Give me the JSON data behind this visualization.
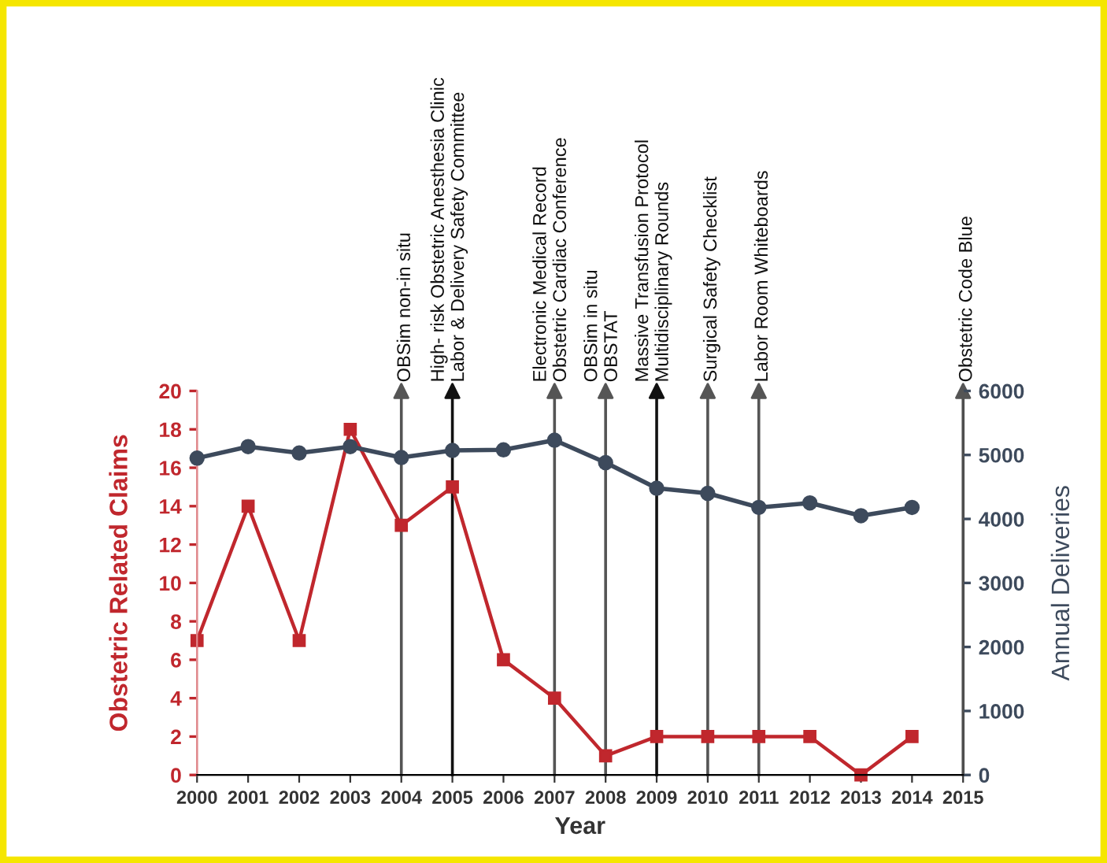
{
  "chart_data": {
    "type": "line",
    "xlabel": "Year",
    "ylabel": "Obstetric Related Claims",
    "y2label": "Annual Deliveries",
    "x": [
      2000,
      2001,
      2002,
      2003,
      2004,
      2005,
      2006,
      2007,
      2008,
      2009,
      2010,
      2011,
      2012,
      2013,
      2014
    ],
    "series": [
      {
        "color": "#c0272d",
        "marker": "square",
        "values": [
          7,
          14,
          7,
          18,
          13,
          15,
          6,
          4,
          1,
          2,
          2,
          2,
          2,
          0,
          2
        ]
      },
      {
        "color": "#3d4a5c",
        "marker": "circle",
        "axis": "y2",
        "values": [
          4950,
          5130,
          5030,
          5130,
          4960,
          5070,
          5080,
          5230,
          4880,
          4480,
          4400,
          4180,
          4250,
          4050,
          4180
        ]
      }
    ],
    "xlim": [
      2000,
      2015
    ],
    "xticks": [
      2000,
      2001,
      2002,
      2003,
      2004,
      2005,
      2006,
      2007,
      2008,
      2009,
      2010,
      2011,
      2012,
      2013,
      2014,
      2015
    ],
    "ylim": [
      0,
      20
    ],
    "yticks": [
      0,
      2,
      4,
      6,
      8,
      10,
      12,
      14,
      16,
      18,
      20
    ],
    "y2lim": [
      0,
      6000
    ],
    "y2ticks": [
      0,
      1000,
      2000,
      3000,
      4000,
      5000,
      6000
    ],
    "ref_lines": [
      {
        "axis": "x",
        "value": 2004,
        "label": "OBSim non-in situ",
        "color": "#555555"
      },
      {
        "axis": "x",
        "value": 2005,
        "label": "High- risk Obstetric Anesthesia Clinic\nLabor & Delivery Safety Committee",
        "color": "#111111"
      },
      {
        "axis": "x",
        "value": 2007,
        "label": "Electronic Medical Record\nObstetric Cardiac Conference",
        "color": "#555555"
      },
      {
        "axis": "x",
        "value": 2008,
        "label": "OBSim in situ\nOBSTAT",
        "color": "#555555"
      },
      {
        "axis": "x",
        "value": 2009,
        "label": "Massive Transfusion Protocol\nMultidisciplinary Rounds",
        "color": "#111111"
      },
      {
        "axis": "x",
        "value": 2010,
        "label": "Surgical Safety Checklist",
        "color": "#555555"
      },
      {
        "axis": "x",
        "value": 2011,
        "label": "Labor Room Whiteboards",
        "color": "#555555"
      },
      {
        "axis": "x",
        "value": 2015,
        "label": "Obstetric Code Blue",
        "color": "#555555"
      }
    ],
    "grid": false,
    "legend": false
  }
}
